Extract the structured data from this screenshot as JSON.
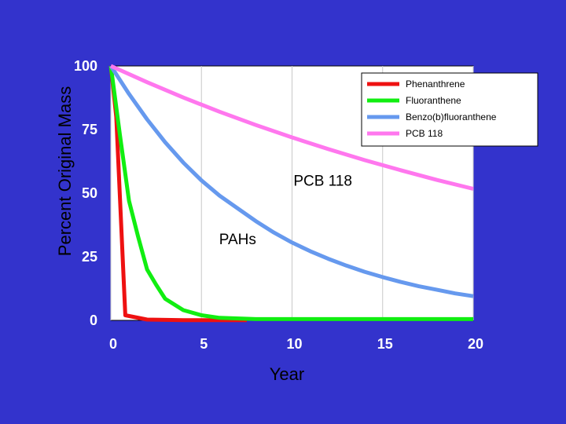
{
  "chart_data": {
    "type": "line",
    "title": "",
    "xlabel": "Year",
    "ylabel": "Percent Original Mass",
    "xlim": [
      0,
      20
    ],
    "ylim": [
      0,
      100
    ],
    "x_ticks": [
      "0",
      "5",
      "10",
      "15",
      "20"
    ],
    "y_ticks": [
      "0",
      "25",
      "50",
      "75",
      "100"
    ],
    "grid": true,
    "legend_position": "top-right",
    "series": [
      {
        "name": "Phenanthrene",
        "color": "#ee1111",
        "x": [
          0,
          0.3,
          0.8,
          2,
          4,
          7.5
        ],
        "y": [
          100,
          80,
          2,
          0.3,
          0.1,
          0.1
        ]
      },
      {
        "name": "Fluoranthene",
        "color": "#11ee11",
        "x": [
          0,
          0.5,
          1,
          1.5,
          2,
          2.5,
          3,
          4,
          5,
          6,
          8,
          10,
          15,
          20
        ],
        "y": [
          100,
          73,
          47,
          33,
          20,
          14,
          8.5,
          4,
          2,
          1,
          0.5,
          0.5,
          0.5,
          0.5
        ]
      },
      {
        "name": "Benzo(b)fluoranthene",
        "color": "#6699ee",
        "x": [
          0,
          1,
          2,
          3,
          4,
          5,
          6,
          7,
          8,
          9,
          10,
          11,
          12,
          13,
          14,
          15,
          16,
          17,
          18,
          19,
          20
        ],
        "y": [
          100,
          89,
          79,
          70,
          62,
          55,
          49,
          44,
          39,
          34.5,
          30.6,
          27.2,
          24.2,
          21.5,
          19.1,
          17,
          15.1,
          13.4,
          12,
          10.6,
          9.5
        ]
      },
      {
        "name": "PCB 118",
        "color": "#ff77ee",
        "x": [
          0,
          2,
          4,
          6,
          8,
          10,
          12,
          14,
          16,
          18,
          20
        ],
        "y": [
          100,
          93.6,
          87.6,
          82,
          76.8,
          71.9,
          67.3,
          63,
          59,
          55.2,
          51.7
        ]
      }
    ],
    "annotations": [
      {
        "text": "PCB 118",
        "x": 11.7,
        "y": 53
      },
      {
        "text": "PAHs",
        "x": 7,
        "y": 30
      }
    ]
  }
}
